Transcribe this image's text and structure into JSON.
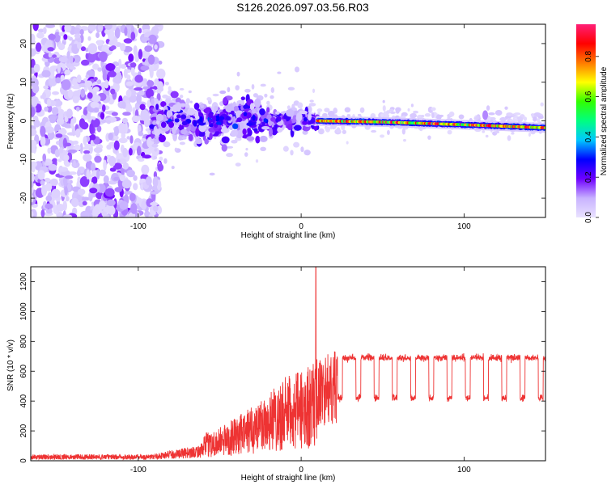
{
  "title": "S126.2026.097.03.56.R03",
  "chart_data": [
    {
      "type": "heatmap",
      "title": "S126.2026.097.03.56.R03",
      "xlabel": "Height of straight line (km)",
      "ylabel": "Frequency (Hz)",
      "xlim": [
        -166,
        150
      ],
      "ylim": [
        -25,
        25
      ],
      "xticks": [
        -100,
        0,
        100
      ],
      "xtick_labels": [
        "-100",
        "0",
        "100"
      ],
      "yticks": [
        -20,
        -10,
        0,
        10,
        20
      ],
      "ytick_labels": [
        "-20",
        "-10",
        "0",
        "10",
        "20"
      ],
      "colorbar": {
        "label": "Normalized spectral amplitude",
        "range": [
          0,
          0.96
        ],
        "ticks": [
          0,
          0.2,
          0.4,
          0.6,
          0.8
        ],
        "tick_labels": [
          "0.0",
          "0.2",
          "0.4",
          "0.6",
          "0.8"
        ],
        "colormap": [
          "#e9e2ff",
          "#c8b2ff",
          "#6e00ff",
          "#0000ff",
          "#00c8ff",
          "#00ff80",
          "#32ff00",
          "#ffff00",
          "#ff7a00",
          "#ff0000",
          "#ff1f77"
        ]
      },
      "features": {
        "noise_region_x": [
          -166,
          -92
        ],
        "turbulent_region_x": [
          -92,
          10
        ],
        "tone_region_x": [
          10,
          150
        ],
        "tone_frequency_hz": [
          {
            "x": 10,
            "f": 0.0
          },
          {
            "x": 50,
            "f": -0.3
          },
          {
            "x": 100,
            "f": -1.0
          },
          {
            "x": 150,
            "f": -1.8
          }
        ],
        "spur": {
          "x": 113,
          "f": 1.5
        }
      }
    },
    {
      "type": "line",
      "xlabel": "Height of straight line (km)",
      "ylabel": "SNR (10 * v/v)",
      "xlim": [
        -166,
        150
      ],
      "ylim": [
        0,
        1300
      ],
      "xticks": [
        -100,
        0,
        100
      ],
      "xtick_labels": [
        "-100",
        "0",
        "100"
      ],
      "yticks": [
        0,
        200,
        400,
        600,
        800,
        1000,
        1200
      ],
      "ytick_labels": [
        "0",
        "200",
        "400",
        "600",
        "800",
        "1000",
        "1200"
      ],
      "series": [
        {
          "name": "SNR",
          "color": "#ee3333",
          "envelope": [
            {
              "x": -166,
              "y": 25
            },
            {
              "x": -110,
              "y": 30
            },
            {
              "x": -90,
              "y": 60
            },
            {
              "x": -70,
              "y": 110
            },
            {
              "x": -50,
              "y": 180
            },
            {
              "x": -35,
              "y": 260
            },
            {
              "x": -20,
              "y": 380
            },
            {
              "x": -10,
              "y": 450
            },
            {
              "x": 0,
              "y": 480
            },
            {
              "x": 10,
              "y": 560
            },
            {
              "x": 20,
              "y": 620
            },
            {
              "x": 30,
              "y": 690
            },
            {
              "x": 150,
              "y": 690
            }
          ],
          "peak": {
            "x": 9,
            "y": 1300
          },
          "plateau_level": 690,
          "dip_level": 420
        }
      ]
    }
  ]
}
